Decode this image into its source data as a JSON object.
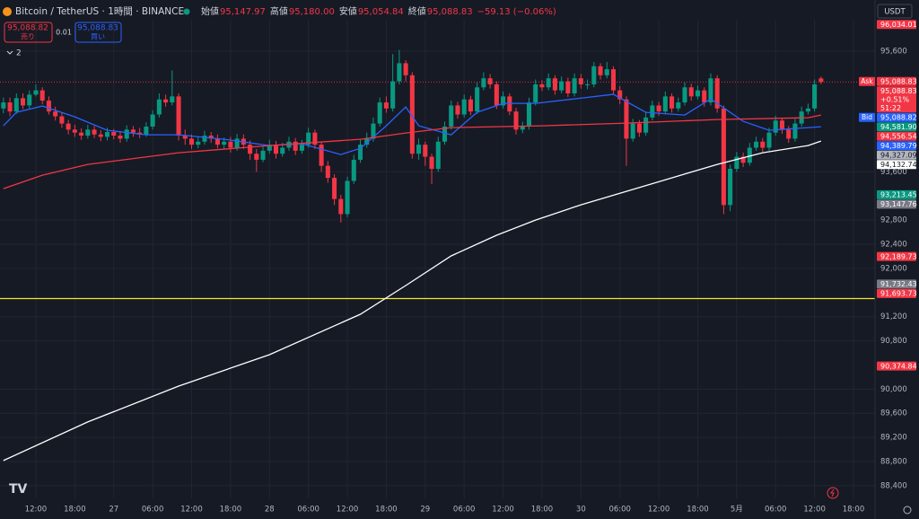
{
  "header": {
    "symbol": "Bitcoin / TetherUS · 1時間 · BINANCE",
    "ohlc": [
      {
        "key": "始値",
        "value": "95,147.97"
      },
      {
        "key": "高値",
        "value": "95,180.00"
      },
      {
        "key": "安値",
        "value": "95,054.84"
      },
      {
        "key": "終値",
        "value": "95,088.83"
      }
    ],
    "change": "−59.13 (−0.06%)"
  },
  "trade": {
    "sell_price": "95,088.82",
    "sell_label": "売り",
    "spread": "0.01",
    "buy_price": "95,088.83",
    "buy_label": "買い"
  },
  "indicators_count": "2",
  "currency": "USDT",
  "chart_data": {
    "type": "candlestick",
    "up_color": "#089981",
    "down_color": "#f23645",
    "grid": true,
    "xlim": [
      -0.53,
      134.32
    ],
    "ylim": [
      88190,
      96120
    ],
    "xticks": [
      {
        "value": 5,
        "label": "12:00"
      },
      {
        "value": 11,
        "label": "18:00"
      },
      {
        "value": 17,
        "label": "27"
      },
      {
        "value": 23,
        "label": "06:00"
      },
      {
        "value": 29,
        "label": "12:00"
      },
      {
        "value": 35,
        "label": "18:00"
      },
      {
        "value": 41,
        "label": "28"
      },
      {
        "value": 47,
        "label": "06:00"
      },
      {
        "value": 53,
        "label": "12:00"
      },
      {
        "value": 59,
        "label": "18:00"
      },
      {
        "value": 65,
        "label": "29"
      },
      {
        "value": 71,
        "label": "06:00"
      },
      {
        "value": 77,
        "label": "12:00"
      },
      {
        "value": 83,
        "label": "18:00"
      },
      {
        "value": 89,
        "label": "30"
      },
      {
        "value": 95,
        "label": "06:00"
      },
      {
        "value": 101,
        "label": "12:00"
      },
      {
        "value": 107,
        "label": "18:00"
      },
      {
        "value": 113,
        "label": "5月"
      },
      {
        "value": 119,
        "label": "06:00"
      },
      {
        "value": 125,
        "label": "12:00"
      },
      {
        "value": 131,
        "label": "18:00"
      }
    ],
    "yticks": [
      {
        "value": 95600,
        "label": "95,600"
      },
      {
        "value": 93600,
        "label": "93,600"
      },
      {
        "value": 92800,
        "label": "92,800"
      },
      {
        "value": 92400,
        "label": "92,400"
      },
      {
        "value": 92000,
        "label": "92,000"
      },
      {
        "value": 91200,
        "label": "91,200"
      },
      {
        "value": 90800,
        "label": "90,800"
      },
      {
        "value": 90000,
        "label": "90,000"
      },
      {
        "value": 89600,
        "label": "89,600"
      },
      {
        "value": 89200,
        "label": "89,200"
      },
      {
        "value": 88800,
        "label": "88,800"
      },
      {
        "value": 88400,
        "label": "88,400"
      }
    ],
    "open": [
      94650,
      94750,
      94600,
      94820,
      94700,
      94880,
      94950,
      94780,
      94600,
      94520,
      94400,
      94300,
      94250,
      94200,
      94300,
      94220,
      94180,
      94260,
      94200,
      94150,
      94300,
      94250,
      94220,
      94350,
      94550,
      94800,
      94750,
      94850,
      94200,
      94150,
      94050,
      94100,
      94200,
      94150,
      94050,
      94100,
      94000,
      94150,
      94050,
      93900,
      93800,
      93950,
      94050,
      93900,
      94000,
      94100,
      93950,
      94050,
      94250,
      94050,
      93700,
      93500,
      93150,
      92900,
      93450,
      93800,
      94050,
      94150,
      94400,
      94750,
      94650,
      95100,
      95400,
      95200,
      93900,
      94050,
      93850,
      93650,
      94100,
      94350,
      94700,
      94550,
      94800,
      94600,
      95000,
      95150,
      95050,
      94700,
      94850,
      94600,
      94300,
      94350,
      94750,
      95050,
      95000,
      95150,
      94950,
      95100,
      94900,
      95150,
      95050,
      95050,
      95350,
      95200,
      95300,
      94950,
      94800,
      94150,
      94400,
      94250,
      94500,
      94700,
      94600,
      94850,
      94650,
      94750,
      95000,
      94850,
      94950,
      94750,
      95150,
      94650,
      93050,
      93650,
      93850,
      93750,
      94000,
      94100,
      94000,
      94250,
      94450,
      94300,
      94150,
      94400,
      94600,
      94650,
      95147.97
    ],
    "high": [
      94830,
      94830,
      94900,
      94900,
      94950,
      95050,
      95000,
      94850,
      94680,
      94580,
      94460,
      94380,
      94320,
      94380,
      94360,
      94290,
      94330,
      94310,
      94280,
      94370,
      94360,
      94330,
      94420,
      94620,
      94900,
      94880,
      95280,
      94900,
      94300,
      94220,
      94180,
      94280,
      94260,
      94220,
      94170,
      94180,
      94230,
      94220,
      94120,
      93980,
      94030,
      94130,
      94110,
      94080,
      94180,
      94160,
      94130,
      94330,
      94300,
      94100,
      93780,
      93560,
      93220,
      93520,
      93880,
      94130,
      94250,
      94500,
      94830,
      94850,
      95550,
      95620,
      95450,
      95250,
      94150,
      94100,
      93900,
      94180,
      94430,
      94780,
      94760,
      94880,
      94860,
      95080,
      95250,
      95220,
      95100,
      94930,
      94900,
      94660,
      94430,
      94830,
      95130,
      95120,
      95230,
      95200,
      95180,
      95160,
      95230,
      95220,
      95130,
      95420,
      95400,
      95420,
      95350,
      95020,
      94850,
      94480,
      94460,
      94580,
      94780,
      94760,
      94930,
      94900,
      94830,
      95080,
      95060,
      95030,
      95000,
      95230,
      95200,
      94700,
      93720,
      93930,
      93920,
      94080,
      94180,
      94160,
      94330,
      94530,
      94500,
      94360,
      94480,
      94680,
      94730,
      95130,
      95180
    ],
    "low": [
      94570,
      94520,
      94560,
      94640,
      94650,
      94850,
      94720,
      94550,
      94450,
      94330,
      94220,
      94180,
      94130,
      94150,
      94160,
      94110,
      94120,
      94140,
      94080,
      94100,
      94180,
      94160,
      94180,
      94300,
      94500,
      94680,
      94700,
      94120,
      94050,
      93980,
      93990,
      94050,
      94080,
      93990,
      93980,
      93920,
      93950,
      93980,
      93800,
      93600,
      93760,
      93900,
      93820,
      93850,
      93950,
      93880,
      93900,
      94000,
      93980,
      93600,
      93420,
      93050,
      92760,
      92850,
      93400,
      93750,
      94000,
      94100,
      94350,
      94580,
      94600,
      95050,
      95100,
      93820,
      93800,
      93700,
      93400,
      93600,
      94050,
      94300,
      94480,
      94500,
      94540,
      94560,
      94950,
      94980,
      94640,
      94650,
      94540,
      94220,
      94240,
      94300,
      94700,
      94940,
      94950,
      94880,
      94900,
      94840,
      94850,
      94980,
      94970,
      95000,
      95130,
      95150,
      94880,
      94720,
      93700,
      94100,
      94180,
      94200,
      94450,
      94530,
      94550,
      94580,
      94600,
      94700,
      94780,
      94800,
      94680,
      94700,
      94580,
      92900,
      92950,
      93600,
      93680,
      93700,
      93950,
      93930,
      93950,
      94200,
      94230,
      94080,
      94100,
      94350,
      94550,
      94600,
      95054.84
    ],
    "close": [
      94750,
      94600,
      94820,
      94700,
      94880,
      94950,
      94780,
      94600,
      94520,
      94400,
      94300,
      94250,
      94200,
      94300,
      94220,
      94180,
      94260,
      94200,
      94150,
      94300,
      94250,
      94220,
      94350,
      94550,
      94800,
      94750,
      94850,
      94200,
      94150,
      94050,
      94100,
      94200,
      94150,
      94050,
      94100,
      94000,
      94150,
      94050,
      93900,
      93800,
      93950,
      94050,
      93900,
      94000,
      94100,
      93950,
      94050,
      94250,
      94050,
      93700,
      93500,
      93150,
      92900,
      93450,
      93800,
      94050,
      94150,
      94400,
      94750,
      94650,
      95100,
      95400,
      95200,
      93900,
      94050,
      93850,
      93650,
      94100,
      94350,
      94700,
      94550,
      94800,
      94600,
      95000,
      95150,
      95050,
      94700,
      94850,
      94600,
      94300,
      94350,
      94750,
      95050,
      95000,
      95150,
      94950,
      95100,
      94900,
      95150,
      95050,
      95050,
      95350,
      95200,
      95300,
      94950,
      94800,
      94150,
      94400,
      94250,
      94500,
      94700,
      94600,
      94850,
      94650,
      94750,
      95000,
      94850,
      94950,
      94750,
      95150,
      94650,
      93050,
      93650,
      93850,
      93750,
      94000,
      94100,
      94000,
      94250,
      94450,
      94300,
      94150,
      94400,
      94600,
      94650,
      95050,
      95088.83
    ],
    "lines": [
      {
        "color": "#2962ff",
        "x": [
          0,
          2,
          6,
          11,
          16,
          22,
          27,
          34,
          41,
          46,
          52,
          55,
          59,
          62,
          64,
          69,
          73,
          77,
          82,
          88,
          94,
          99,
          105,
          109,
          114,
          118,
          124,
          126
        ],
        "values": [
          94363,
          94586,
          94690,
          94512,
          94289,
          94214,
          94214,
          94140,
          94036,
          94066,
          93887,
          93990,
          94363,
          94675,
          94363,
          94214,
          94586,
          94735,
          94735,
          94809,
          94884,
          94586,
          94541,
          94809,
          94437,
          94289,
          94333,
          94348
        ]
      },
      {
        "color": "#f23645",
        "x": [
          0,
          6,
          13,
          27,
          41,
          55,
          62,
          69,
          83,
          96,
          110,
          124,
          126
        ],
        "values": [
          93322,
          93545,
          93723,
          93917,
          94036,
          94140,
          94244,
          94333,
          94363,
          94407,
          94467,
          94497,
          94541
        ]
      },
      {
        "color": "#ffffff",
        "x": [
          0,
          13,
          27,
          41,
          55,
          62,
          69,
          76,
          82,
          89,
          96,
          103,
          110,
          117,
          124,
          126
        ],
        "values": [
          88816,
          89456,
          90050,
          90570,
          91240,
          91716,
          92207,
          92549,
          92800,
          93054,
          93277,
          93500,
          93723,
          93917,
          94036,
          94110
        ]
      }
    ],
    "hline": {
      "value": 91500,
      "color": "#f5e92a"
    },
    "price_labels": [
      {
        "value": 96034.01,
        "label": "96,034.01",
        "color": "#f23645"
      },
      {
        "value": 95088.83,
        "label": "95,088.83",
        "color": "#f23645",
        "tag": "Ask",
        "line": true
      },
      {
        "value": 95088.83,
        "label": "95,088.83",
        "color": "#f23645",
        "extra": [
          "+0.51%",
          "51:22"
        ]
      },
      {
        "value": 95088.82,
        "label": "95,088.82",
        "color": "#2962ff",
        "tag": "Bid"
      },
      {
        "value": 94581.9,
        "label": "94,581.90",
        "color": "#089981"
      },
      {
        "value": 94556.54,
        "label": "94,556.54",
        "color": "#f23645"
      },
      {
        "value": 94389.79,
        "label": "94,389.79",
        "color": "#2962ff"
      },
      {
        "value": 94327.09,
        "label": "94,327.09",
        "color": "#b2b5be"
      },
      {
        "value": 94132.74,
        "label": "94,132.74",
        "color": "#ffffff"
      },
      {
        "value": 93213.45,
        "label": "93,213.45",
        "color": "#089981"
      },
      {
        "value": 93147.76,
        "label": "93,147.76",
        "color": "#787b86"
      },
      {
        "value": 92189.73,
        "label": "92,189.73",
        "color": "#f23645"
      },
      {
        "value": 91732.43,
        "label": "91,732.43",
        "color": "#787b86"
      },
      {
        "value": 91693.73,
        "label": "91,693.73",
        "color": "#f23645"
      },
      {
        "value": 90374.84,
        "label": "90,374.84",
        "color": "#f23645"
      }
    ]
  }
}
